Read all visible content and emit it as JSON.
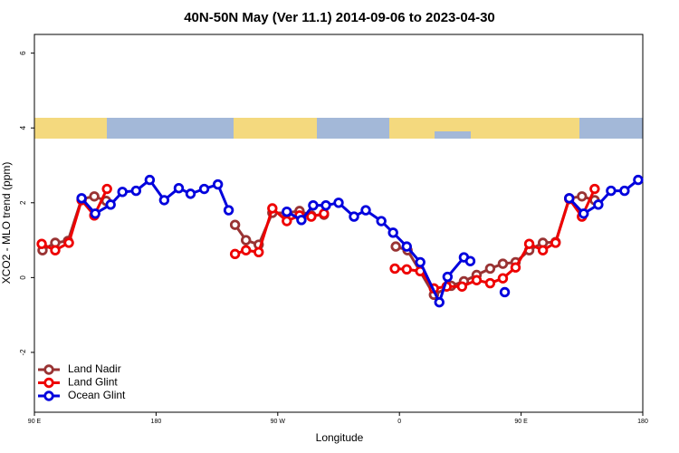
{
  "chart_data": {
    "type": "line",
    "title": "40N-50N May (Ver 11.1)   2014-09-06 to 2023-04-30",
    "x_label": "Longitude",
    "y_label": "XCO2 - MLO trend (ppm)",
    "xlim": [
      90,
      540
    ],
    "ylim": [
      -3.6,
      6.5
    ],
    "xticks": [
      {
        "value": 90,
        "label": "90 E"
      },
      180,
      {
        "value": 270,
        "label": "90 W"
      },
      {
        "value": 360,
        "label": "0"
      },
      {
        "value": 450,
        "label": "90 E"
      },
      {
        "value": 540,
        "label": "180"
      }
    ],
    "yticks": [
      -2,
      0,
      2,
      4,
      6
    ],
    "grid": false,
    "legend": "bottom-left",
    "series": [
      {
        "name": "Land Nadir",
        "color": "#993333",
        "x": [
          96.0,
          105.4,
          114.8,
          124.9,
          134.3,
          143.1,
          null,
          238.4,
          246.5,
          255.9,
          266.0,
          276.7,
          286.1,
          294.8,
          304.2,
          null,
          357.3,
          366.0,
          385.5,
          398.3,
          407.7,
          417.1,
          427.1,
          436.5,
          445.9,
          456.0,
          466.1,
          475.5,
          485.6,
          495.0,
          504.4
        ],
        "values": [
          0.73,
          0.93,
          0.98,
          2.1,
          2.17,
          2.05,
          null,
          1.41,
          1.0,
          0.88,
          1.73,
          1.73,
          1.78,
          1.66,
          1.68,
          null,
          0.83,
          0.73,
          -0.46,
          -0.22,
          -0.1,
          0.07,
          0.24,
          0.37,
          0.41,
          0.73,
          0.93,
          0.95,
          2.12,
          2.17,
          2.07
        ]
      },
      {
        "name": "Land Glint",
        "color": "#ee0000",
        "x": [
          95.4,
          105.4,
          115.5,
          124.9,
          134.3,
          143.7,
          null,
          238.4,
          246.5,
          255.9,
          266.0,
          276.7,
          286.1,
          294.8,
          304.2,
          null,
          356.6,
          365.4,
          375.4,
          385.5,
          394.9,
          406.3,
          417.1,
          427.1,
          436.5,
          445.9,
          456.0,
          466.1,
          475.5,
          485.6,
          495.0,
          504.4
        ],
        "values": [
          0.9,
          0.73,
          0.93,
          2.07,
          1.66,
          2.37,
          null,
          0.63,
          0.73,
          0.68,
          1.85,
          1.51,
          1.66,
          1.63,
          1.71,
          null,
          0.24,
          0.22,
          0.17,
          -0.29,
          -0.24,
          -0.24,
          -0.07,
          -0.15,
          -0.02,
          0.27,
          0.9,
          0.73,
          0.93,
          2.1,
          1.63,
          2.37
        ]
      },
      {
        "name": "Ocean Glint",
        "color": "#0000dd",
        "x": [
          124.9,
          135.0,
          146.4,
          155.1,
          165.2,
          175.3,
          186.0,
          196.8,
          205.5,
          215.6,
          225.7,
          233.7,
          null,
          276.7,
          287.5,
          296.2,
          305.6,
          315.0,
          326.4,
          335.1,
          346.6,
          355.3,
          365.4,
          375.4,
          389.5,
          395.6,
          407.7,
          412.4,
          null,
          437.9,
          null,
          485.6,
          496.3,
          507.1,
          516.5,
          526.5,
          536.6
        ],
        "values": [
          2.12,
          1.71,
          1.95,
          2.29,
          2.32,
          2.61,
          2.07,
          2.39,
          2.24,
          2.37,
          2.49,
          1.8,
          null,
          1.76,
          1.54,
          1.93,
          1.93,
          2.0,
          1.63,
          1.8,
          1.51,
          1.2,
          0.83,
          0.41,
          -0.66,
          0.02,
          0.54,
          0.44,
          null,
          -0.39,
          null,
          2.12,
          1.71,
          1.95,
          2.32,
          2.32,
          2.61
        ]
      }
    ]
  }
}
